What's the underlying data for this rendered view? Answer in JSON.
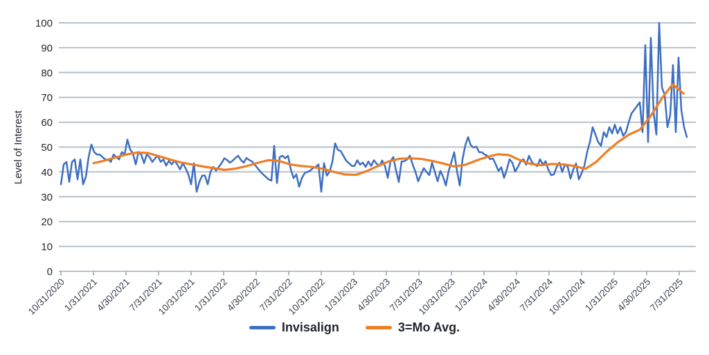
{
  "chart_data": {
    "type": "line",
    "title": "",
    "xlabel": "",
    "ylabel": "Level of Interest",
    "ylim": [
      0,
      100
    ],
    "y_ticks": [
      0,
      10,
      20,
      30,
      40,
      50,
      60,
      70,
      80,
      90,
      100
    ],
    "x_tick_labels": [
      "10/31/2020",
      "1/31/2021",
      "4/30/2021",
      "7/31/2021",
      "10/31/2021",
      "1/31/2022",
      "4/30/2022",
      "7/31/2022",
      "10/31/2022",
      "1/31/2023",
      "4/30/2023",
      "7/31/2023",
      "10/31/2023",
      "1/31/2024",
      "4/30/2024",
      "7/31/2024",
      "10/31/2024",
      "1/31/2025",
      "4/30/2025",
      "7/31/2025"
    ],
    "x_axis_months_total": 57,
    "months_per_tick": 3,
    "grid": true,
    "legend_position": "bottom",
    "grid_color": "#b7c1cd",
    "tick_color": "#9aa7b5",
    "series": [
      {
        "name": "Invisalign",
        "color": "#3d6ec0",
        "months_start": 0,
        "months_end": 57.7,
        "values": [
          35,
          43,
          44,
          36,
          44,
          45,
          37,
          45,
          35,
          38,
          46,
          51,
          48,
          47,
          47,
          46,
          45,
          45,
          44,
          47,
          46,
          45,
          48,
          47,
          53,
          49,
          47.5,
          43,
          48,
          47,
          43.5,
          47,
          46,
          44,
          45.5,
          46.5,
          44,
          45,
          42.5,
          44.5,
          43,
          44.5,
          43,
          41,
          43.5,
          41.5,
          39,
          35,
          43.5,
          32,
          36,
          38.5,
          38.5,
          35,
          40,
          42,
          40.5,
          42,
          43.5,
          45.5,
          44.8,
          43.7,
          44.5,
          45.6,
          46.5,
          44.8,
          43.7,
          45.6,
          44.8,
          44.2,
          42.9,
          41.5,
          40.1,
          39,
          38,
          37,
          36.5,
          50.5,
          35.5,
          46,
          46.5,
          45.5,
          46.5,
          41,
          37.5,
          39,
          34,
          37.5,
          39.5,
          40,
          40.5,
          41.5,
          42,
          43,
          32,
          43.5,
          38.5,
          40,
          44,
          51.5,
          48.8,
          48.4,
          46.5,
          44.5,
          43.5,
          42.4,
          42.4,
          44.7,
          42.9,
          43.8,
          42,
          44.2,
          42.4,
          44.7,
          43.3,
          42.4,
          44.6,
          42.4,
          37.6,
          44.2,
          46,
          40.6,
          35.9,
          44.2,
          44.3,
          45,
          46.5,
          43,
          40,
          36.2,
          39,
          41.5,
          40,
          38.7,
          43.7,
          40,
          36.2,
          40.4,
          38,
          34.5,
          40.4,
          44,
          47.9,
          40.4,
          34.5,
          45.1,
          50.7,
          54,
          50.7,
          49.8,
          50.2,
          47.9,
          47.9,
          47,
          46.5,
          45.1,
          45.4,
          43,
          40.4,
          41.9,
          37.6,
          41,
          45.1,
          43.7,
          40.1,
          42,
          44.3,
          45.1,
          42.9,
          46.5,
          44,
          43,
          42.3,
          45.1,
          42.9,
          44.3,
          40.9,
          38.7,
          39,
          42,
          43.7,
          40,
          43,
          42,
          37.3,
          41,
          43.4,
          37,
          39.5,
          42.5,
          48,
          52,
          58,
          55,
          52,
          50.5,
          56,
          54,
          58,
          55.5,
          59,
          55.5,
          58,
          54.5,
          56,
          60,
          63.5,
          65,
          66.5,
          68,
          56,
          91,
          52,
          94,
          64,
          55,
          100,
          74,
          71,
          58,
          63,
          83,
          56,
          86,
          65,
          58,
          54
        ]
      },
      {
        "name": "3=Mo Avg.",
        "color": "#f07d22",
        "months_start": 3,
        "months_end": 57.4,
        "values": [
          43.5,
          44.5,
          45.8,
          47,
          47.8,
          47.6,
          46.3,
          45,
          43.8,
          43,
          42.2,
          41.5,
          40.8,
          41.3,
          42.3,
          43.6,
          44.7,
          44.4,
          43,
          42.4,
          42,
          41.2,
          40,
          39,
          38.8,
          40.3,
          42.3,
          44.2,
          45.3,
          45.5,
          45.2,
          44.4,
          43.4,
          42.2,
          42.8,
          44.5,
          46,
          47.1,
          46.8,
          44.8,
          43.2,
          42.7,
          43.2,
          43,
          42.4,
          41.2,
          44,
          48.3,
          52,
          55,
          57,
          62.5,
          69.5,
          75.3,
          71.5
        ]
      }
    ]
  }
}
